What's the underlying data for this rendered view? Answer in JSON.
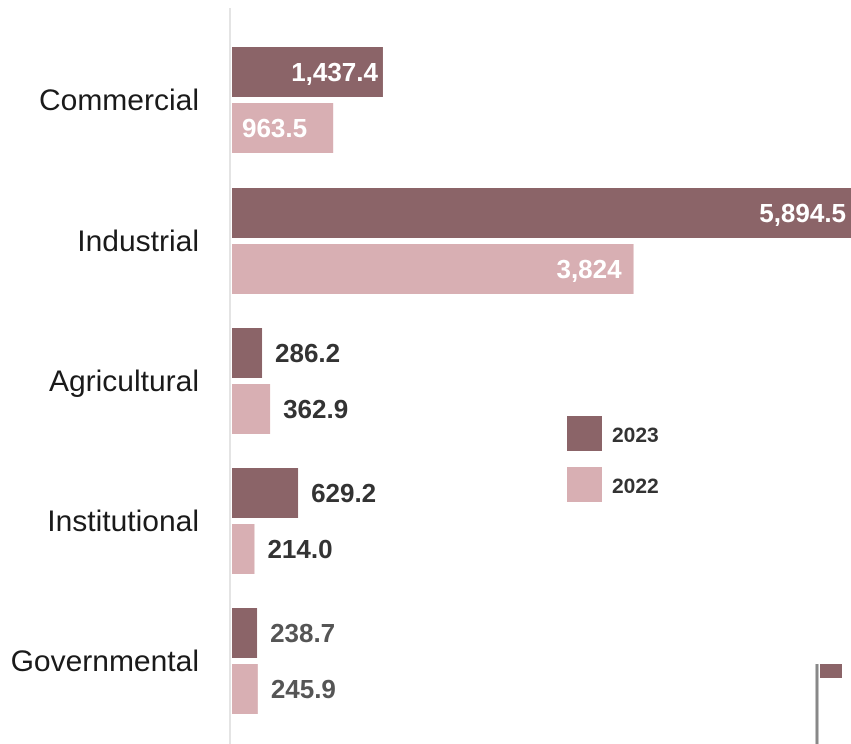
{
  "chart_data": {
    "type": "bar",
    "orientation": "horizontal",
    "categories": [
      "Commercial",
      "Industrial",
      "Agricultural",
      "Institutional",
      "Governmental"
    ],
    "series": [
      {
        "name": "2023",
        "color": "#8b6468",
        "values": [
          1437.4,
          5894.5,
          286.2,
          629.2,
          238.7
        ],
        "labels": [
          "1,437.4",
          "5,894.5",
          "286.2",
          "629.2",
          "238.7"
        ]
      },
      {
        "name": "2022",
        "color": "#d8afb3",
        "values": [
          963.5,
          3824,
          362.9,
          214.0,
          245.9
        ],
        "labels": [
          "963.5",
          "3,824",
          "362.9",
          "214.0",
          "245.9"
        ]
      }
    ],
    "title": "",
    "xlabel": "",
    "ylabel": "",
    "legend": {
      "position": "right-middle",
      "entries": [
        "2023",
        "2022"
      ]
    },
    "grid": false
  }
}
